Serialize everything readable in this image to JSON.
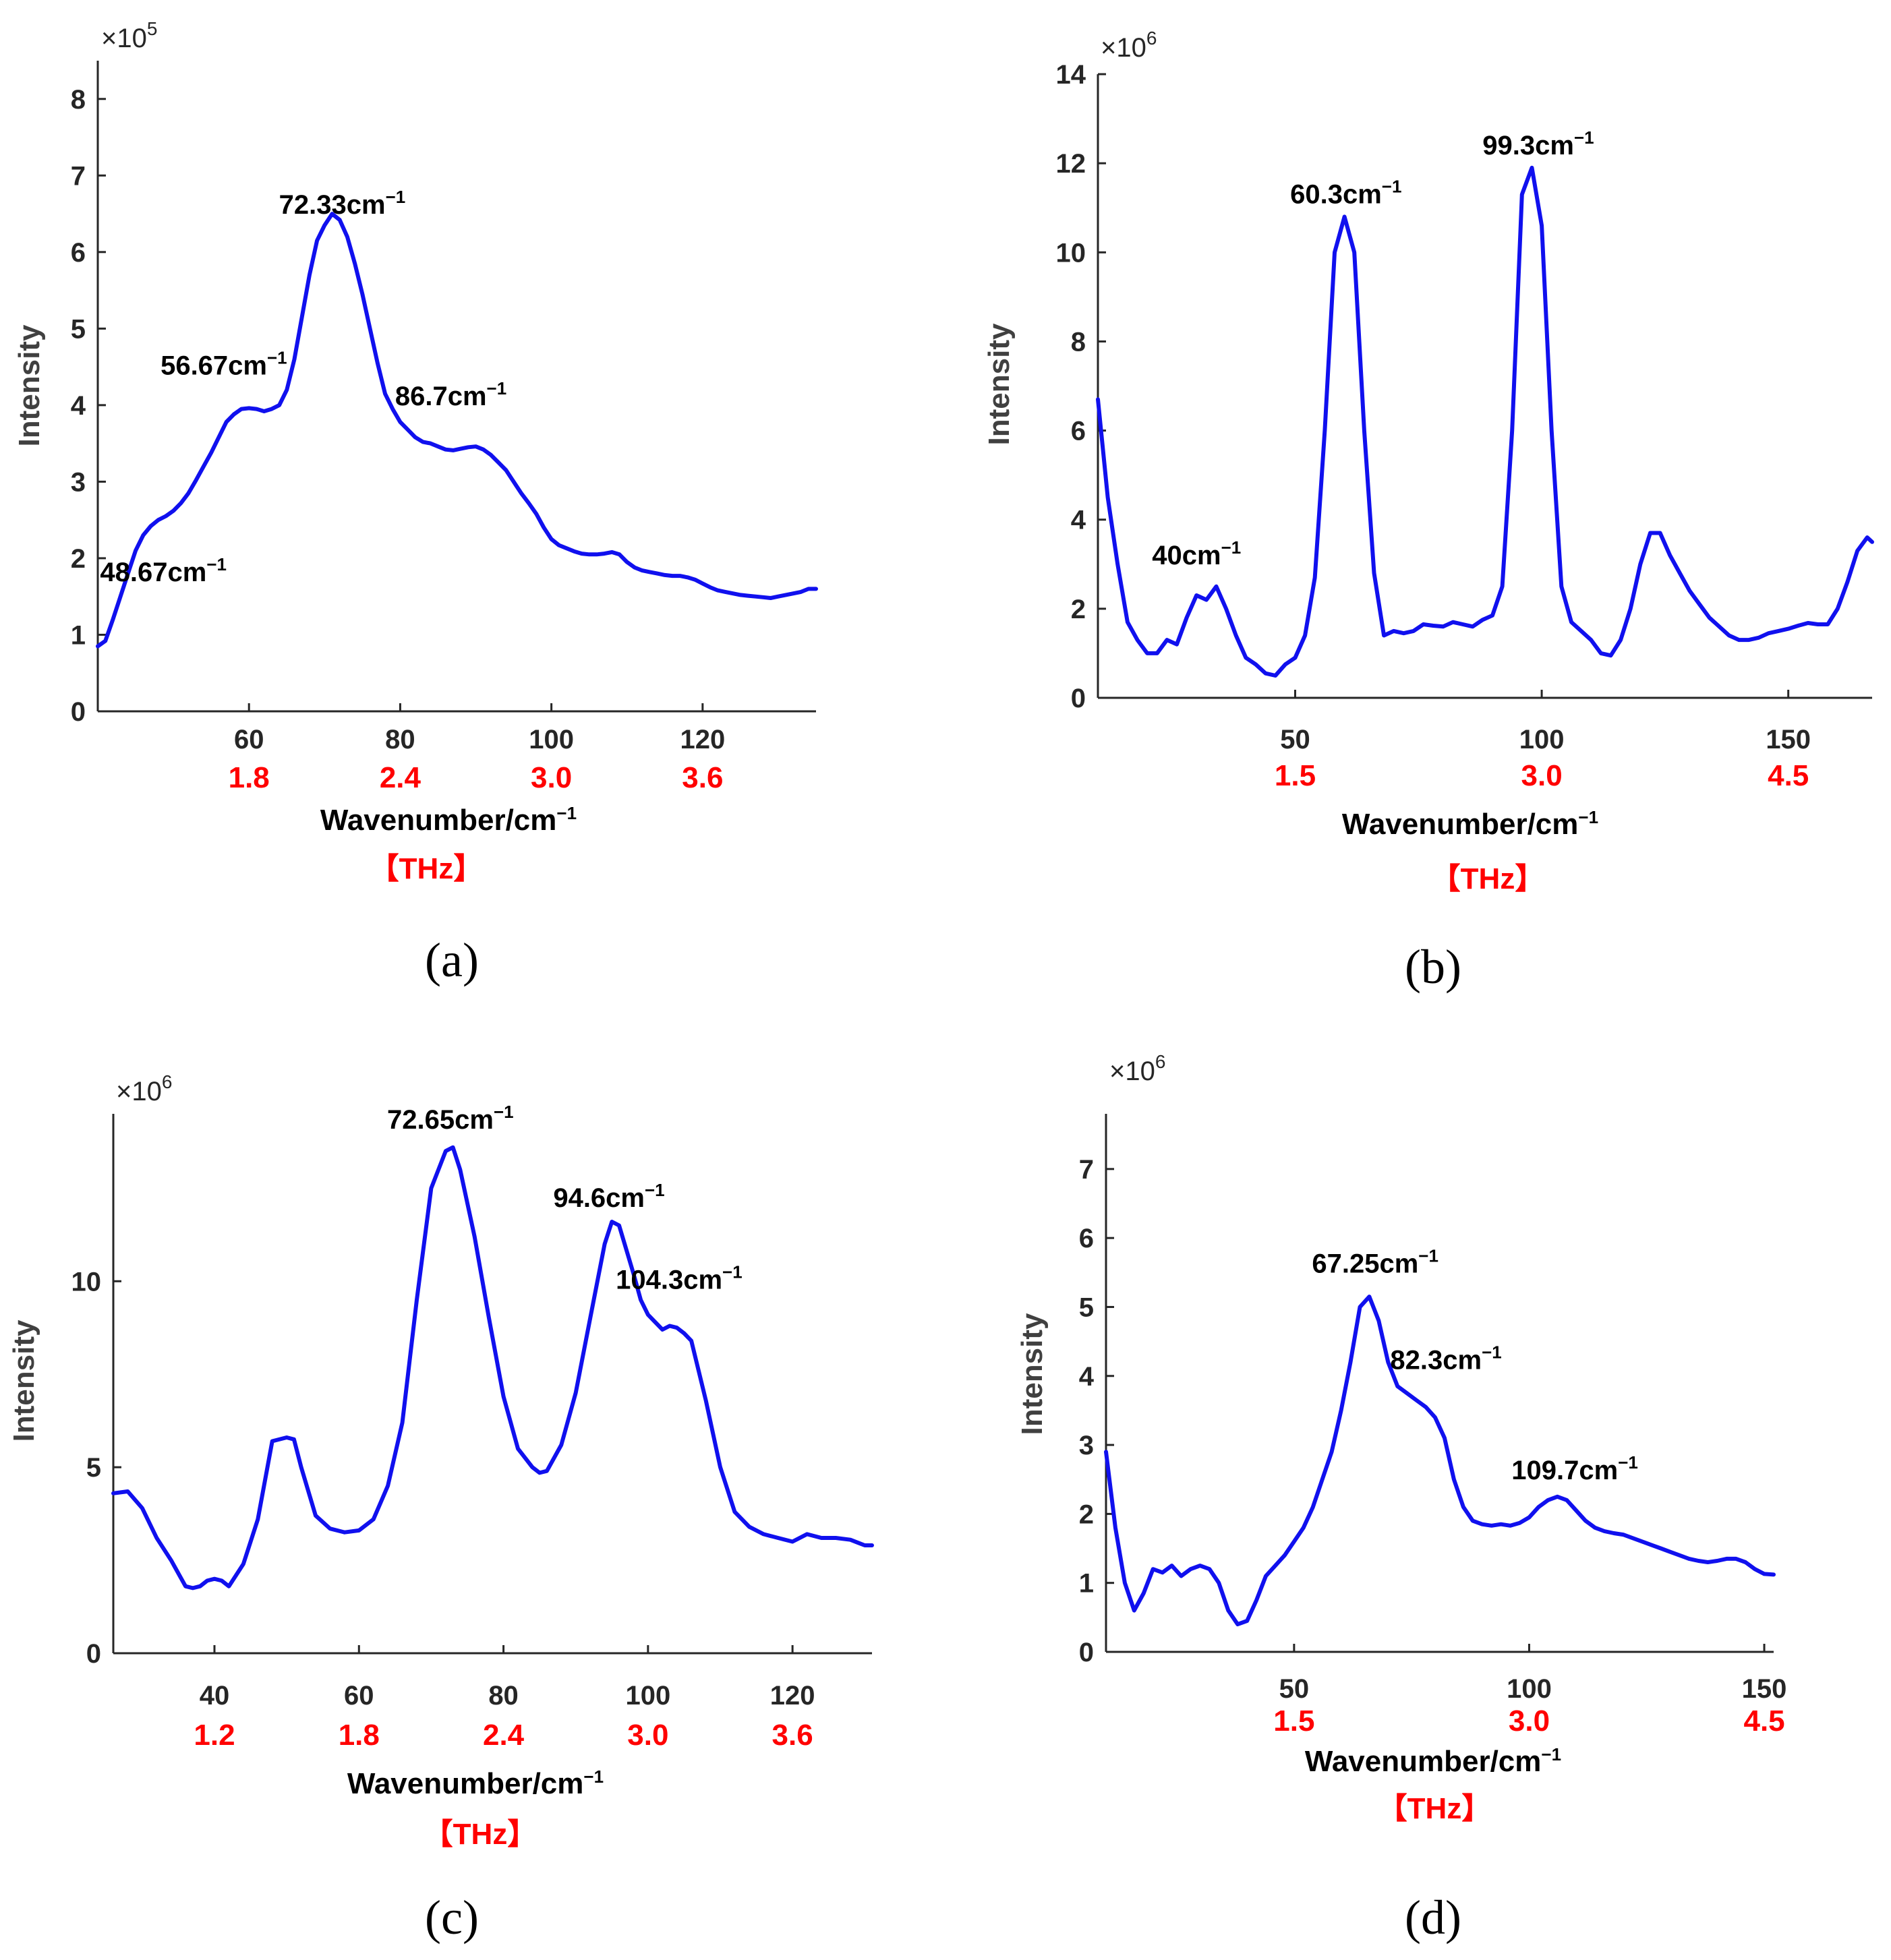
{
  "colors": {
    "curve": "#1010ee",
    "thz": "#ff0000",
    "axis": "#262626"
  },
  "chart_data": [
    {
      "type": "line",
      "panel_label": "(a)",
      "multiplier": {
        "base": "×10",
        "exp": "5"
      },
      "ylabel": "Intensity",
      "xlabel": {
        "main": "Wavenumber/cm",
        "exp": "−1"
      },
      "thz_unit": "【THz】",
      "xlim": [
        40,
        135
      ],
      "ylim": [
        0,
        8.5
      ],
      "yticks": [
        0,
        1,
        2,
        3,
        4,
        5,
        6,
        7,
        8
      ],
      "xticks": [
        60,
        80,
        100,
        120
      ],
      "thz_ticks": [
        {
          "x": 60,
          "label": "1.8"
        },
        {
          "x": 80,
          "label": "2.4"
        },
        {
          "x": 100,
          "label": "3.0"
        },
        {
          "x": 120,
          "label": "3.6"
        }
      ],
      "annotations": [
        {
          "main": "72.33cm",
          "exp": "−1",
          "x": 72.33,
          "y": 6.5
        },
        {
          "main": "56.67cm",
          "exp": "−1",
          "x": 56.67,
          "y": 4.4
        },
        {
          "main": "86.7cm",
          "exp": "−1",
          "x": 86.7,
          "y": 4.0
        },
        {
          "main": "48.67cm",
          "exp": "−1",
          "x": 48.67,
          "y": 1.7
        }
      ],
      "series": [
        {
          "name": "spectrum",
          "x": [
            40,
            41,
            42,
            43,
            44,
            45,
            46,
            47,
            48,
            49,
            50,
            51,
            52,
            53,
            54,
            55,
            56,
            57,
            58,
            59,
            60,
            61,
            62,
            63,
            64,
            65,
            66,
            67,
            68,
            69,
            70,
            71,
            72,
            73,
            74,
            75,
            76,
            77,
            78,
            79,
            80,
            81,
            82,
            83,
            84,
            85,
            86,
            87,
            88,
            89,
            90,
            91,
            92,
            93,
            94,
            95,
            96,
            97,
            98,
            99,
            100,
            101,
            102,
            103,
            104,
            105,
            106,
            107,
            108,
            109,
            110,
            111,
            112,
            113,
            114,
            115,
            116,
            117,
            118,
            119,
            120,
            121,
            122,
            123,
            124,
            125,
            126,
            127,
            128,
            129,
            130,
            131,
            132,
            133,
            134,
            135
          ],
          "y": [
            0.85,
            0.92,
            1.2,
            1.5,
            1.8,
            2.1,
            2.3,
            2.42,
            2.5,
            2.55,
            2.62,
            2.72,
            2.85,
            3.02,
            3.2,
            3.38,
            3.58,
            3.78,
            3.88,
            3.95,
            3.96,
            3.95,
            3.92,
            3.95,
            4.0,
            4.2,
            4.6,
            5.15,
            5.7,
            6.15,
            6.35,
            6.5,
            6.42,
            6.2,
            5.85,
            5.45,
            5.0,
            4.55,
            4.15,
            3.95,
            3.78,
            3.68,
            3.58,
            3.52,
            3.5,
            3.46,
            3.42,
            3.41,
            3.43,
            3.45,
            3.46,
            3.42,
            3.35,
            3.25,
            3.15,
            3.0,
            2.85,
            2.72,
            2.58,
            2.4,
            2.25,
            2.17,
            2.13,
            2.09,
            2.06,
            2.05,
            2.05,
            2.06,
            2.08,
            2.05,
            1.95,
            1.88,
            1.84,
            1.82,
            1.8,
            1.78,
            1.77,
            1.77,
            1.75,
            1.72,
            1.67,
            1.62,
            1.58,
            1.56,
            1.54,
            1.52,
            1.51,
            1.5,
            1.49,
            1.48,
            1.5,
            1.52,
            1.54,
            1.56,
            1.6,
            1.6
          ]
        }
      ]
    },
    {
      "type": "line",
      "panel_label": "(b)",
      "multiplier": {
        "base": "×10",
        "exp": "6"
      },
      "ylabel": "Intensity",
      "xlabel": {
        "main": "Wavenumber/cm",
        "exp": "−1"
      },
      "thz_unit": "【THz】",
      "xlim": [
        10,
        167
      ],
      "ylim": [
        0,
        14
      ],
      "yticks": [
        0,
        2,
        4,
        6,
        8,
        10,
        12,
        14
      ],
      "xticks": [
        50,
        100,
        150
      ],
      "thz_ticks": [
        {
          "x": 50,
          "label": "1.5"
        },
        {
          "x": 100,
          "label": "3.0"
        },
        {
          "x": 150,
          "label": "4.5"
        }
      ],
      "annotations": [
        {
          "main": "60.3cm",
          "exp": "−1",
          "x": 60.3,
          "y": 11.1
        },
        {
          "main": "99.3cm",
          "exp": "−1",
          "x": 99.3,
          "y": 12.2
        },
        {
          "main": "40cm",
          "exp": "−1",
          "x": 30,
          "y": 3.0
        }
      ],
      "series": [
        {
          "name": "spectrum",
          "x": [
            10,
            12,
            14,
            16,
            18,
            20,
            22,
            24,
            26,
            28,
            30,
            32,
            34,
            36,
            38,
            40,
            42,
            44,
            46,
            48,
            50,
            52,
            54,
            56,
            58,
            60,
            62,
            64,
            66,
            68,
            70,
            72,
            74,
            76,
            78,
            80,
            82,
            84,
            86,
            88,
            90,
            92,
            94,
            96,
            98,
            100,
            102,
            104,
            106,
            108,
            110,
            112,
            114,
            116,
            118,
            120,
            122,
            124,
            126,
            128,
            130,
            132,
            134,
            136,
            138,
            140,
            142,
            144,
            146,
            148,
            150,
            152,
            154,
            156,
            158,
            160,
            162,
            164,
            166,
            167
          ],
          "y": [
            6.7,
            4.5,
            3.0,
            1.7,
            1.3,
            1.0,
            1.0,
            1.3,
            1.2,
            1.8,
            2.3,
            2.2,
            2.5,
            2.0,
            1.4,
            0.9,
            0.75,
            0.55,
            0.5,
            0.75,
            0.9,
            1.4,
            2.7,
            6.0,
            10.0,
            10.8,
            10.0,
            6.0,
            2.8,
            1.4,
            1.5,
            1.45,
            1.5,
            1.65,
            1.62,
            1.6,
            1.7,
            1.65,
            1.6,
            1.75,
            1.85,
            2.5,
            6.0,
            11.3,
            11.9,
            10.6,
            6.0,
            2.5,
            1.7,
            1.5,
            1.3,
            1.0,
            0.95,
            1.3,
            2.0,
            3.0,
            3.7,
            3.7,
            3.2,
            2.8,
            2.4,
            2.1,
            1.8,
            1.6,
            1.4,
            1.3,
            1.3,
            1.35,
            1.45,
            1.5,
            1.55,
            1.62,
            1.68,
            1.65,
            1.65,
            2.0,
            2.6,
            3.3,
            3.6,
            3.5
          ]
        }
      ]
    },
    {
      "type": "line",
      "panel_label": "(c)",
      "multiplier": {
        "base": "×10",
        "exp": "6"
      },
      "ylabel": "Intensity",
      "xlabel": {
        "main": "Wavenumber/cm",
        "exp": "−1"
      },
      "thz_unit": "【THz】",
      "xlim": [
        26,
        131
      ],
      "ylim": [
        0,
        14.5
      ],
      "yticks": [
        0,
        5,
        10
      ],
      "xticks": [
        40,
        60,
        80,
        100,
        120
      ],
      "thz_ticks": [
        {
          "x": 40,
          "label": "1.2"
        },
        {
          "x": 60,
          "label": "1.8"
        },
        {
          "x": 80,
          "label": "2.4"
        },
        {
          "x": 100,
          "label": "3.0"
        },
        {
          "x": 120,
          "label": "3.6"
        }
      ],
      "annotations": [
        {
          "main": "72.65cm",
          "exp": "−1",
          "x": 72.65,
          "y": 14.1
        },
        {
          "main": "94.6cm",
          "exp": "−1",
          "x": 94.6,
          "y": 12.0
        },
        {
          "main": "104.3cm",
          "exp": "−1",
          "x": 104.3,
          "y": 9.8
        }
      ],
      "series": [
        {
          "name": "spectrum",
          "x": [
            26,
            28,
            30,
            32,
            34,
            36,
            37,
            38,
            39,
            40,
            41,
            42,
            44,
            46,
            48,
            50,
            51,
            52,
            54,
            56,
            58,
            60,
            62,
            64,
            66,
            68,
            70,
            72,
            73,
            74,
            76,
            78,
            80,
            82,
            84,
            85,
            86,
            88,
            90,
            92,
            94,
            95,
            96,
            98,
            99,
            100,
            101,
            102,
            103,
            104,
            105,
            106,
            108,
            110,
            112,
            114,
            116,
            118,
            120,
            122,
            124,
            126,
            128,
            130,
            131
          ],
          "y": [
            4.3,
            4.35,
            3.9,
            3.1,
            2.5,
            1.8,
            1.75,
            1.8,
            1.95,
            2.0,
            1.95,
            1.8,
            2.4,
            3.6,
            5.7,
            5.8,
            5.75,
            5.0,
            3.7,
            3.35,
            3.25,
            3.3,
            3.6,
            4.5,
            6.2,
            9.5,
            12.5,
            13.5,
            13.6,
            13.0,
            11.2,
            9.0,
            6.9,
            5.5,
            5.0,
            4.85,
            4.9,
            5.6,
            7.0,
            9.0,
            11.0,
            11.6,
            11.5,
            10.2,
            9.5,
            9.1,
            8.9,
            8.7,
            8.8,
            8.75,
            8.6,
            8.4,
            6.8,
            5.0,
            3.8,
            3.4,
            3.2,
            3.1,
            3.0,
            3.2,
            3.1,
            3.1,
            3.05,
            2.9,
            2.9
          ]
        }
      ]
    },
    {
      "type": "line",
      "panel_label": "(d)",
      "multiplier": {
        "base": "×10",
        "exp": "6"
      },
      "ylabel": "Intensity",
      "xlabel": {
        "main": "Wavenumber/cm",
        "exp": "−1"
      },
      "thz_unit": "【THz】",
      "xlim": [
        10,
        152
      ],
      "ylim": [
        0,
        7.8
      ],
      "yticks": [
        0,
        1,
        2,
        3,
        4,
        5,
        6,
        7
      ],
      "xticks": [
        50,
        100,
        150
      ],
      "thz_ticks": [
        {
          "x": 50,
          "label": "1.5"
        },
        {
          "x": 100,
          "label": "3.0"
        },
        {
          "x": 150,
          "label": "4.5"
        }
      ],
      "annotations": [
        {
          "main": "67.25cm",
          "exp": "−1",
          "x": 67.25,
          "y": 5.5
        },
        {
          "main": "82.3cm",
          "exp": "−1",
          "x": 82.3,
          "y": 4.1
        },
        {
          "main": "109.7cm",
          "exp": "−1",
          "x": 109.7,
          "y": 2.5
        }
      ],
      "series": [
        {
          "name": "spectrum",
          "x": [
            10,
            12,
            14,
            16,
            18,
            20,
            22,
            24,
            26,
            28,
            30,
            32,
            34,
            36,
            38,
            40,
            42,
            44,
            46,
            48,
            50,
            52,
            54,
            56,
            58,
            60,
            62,
            64,
            66,
            68,
            70,
            72,
            74,
            76,
            78,
            80,
            82,
            84,
            86,
            88,
            90,
            92,
            94,
            96,
            98,
            100,
            102,
            104,
            106,
            108,
            110,
            112,
            114,
            116,
            118,
            120,
            122,
            124,
            126,
            128,
            130,
            132,
            134,
            136,
            138,
            140,
            142,
            144,
            146,
            148,
            150,
            152
          ],
          "y": [
            2.9,
            1.8,
            1.0,
            0.6,
            0.85,
            1.2,
            1.15,
            1.25,
            1.1,
            1.2,
            1.25,
            1.2,
            1.0,
            0.6,
            0.4,
            0.45,
            0.75,
            1.1,
            1.25,
            1.4,
            1.6,
            1.8,
            2.1,
            2.5,
            2.9,
            3.5,
            4.2,
            5.0,
            5.15,
            4.8,
            4.2,
            3.85,
            3.75,
            3.65,
            3.55,
            3.4,
            3.1,
            2.5,
            2.1,
            1.9,
            1.85,
            1.83,
            1.85,
            1.83,
            1.87,
            1.95,
            2.1,
            2.2,
            2.25,
            2.2,
            2.05,
            1.9,
            1.8,
            1.75,
            1.72,
            1.7,
            1.65,
            1.6,
            1.55,
            1.5,
            1.45,
            1.4,
            1.35,
            1.32,
            1.3,
            1.32,
            1.35,
            1.35,
            1.3,
            1.2,
            1.13,
            1.12
          ]
        }
      ]
    }
  ]
}
